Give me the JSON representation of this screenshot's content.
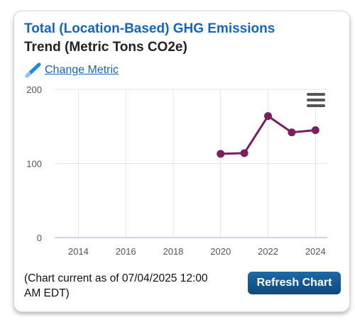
{
  "card": {
    "title_line1": "Total (Location-Based) GHG Emissions",
    "title_line2": "Trend (Metric Tons CO2e)",
    "change_metric_label": "Change Metric",
    "footnote": "(Chart current as of 07/04/2025 12:00 AM EDT)",
    "refresh_label": "Refresh Chart"
  },
  "colors": {
    "title_blue": "#1565c0",
    "series": "#7b1f5e",
    "button": "#0b4a80"
  },
  "icons": {
    "change_metric": "pencil-icon",
    "menu": "hamburger-menu-icon"
  },
  "chart_data": {
    "type": "line",
    "title": "",
    "xlabel": "",
    "ylabel": "",
    "xlim": [
      2013,
      2024.5
    ],
    "ylim": [
      0,
      200
    ],
    "x_ticks": [
      2014,
      2016,
      2018,
      2020,
      2022,
      2024
    ],
    "y_ticks": [
      0,
      100,
      200
    ],
    "grid": "vertical and horizontal",
    "series": [
      {
        "x": [
          2020,
          2021,
          2022,
          2023,
          2024
        ],
        "values": [
          113,
          114,
          164,
          142,
          145
        ]
      }
    ]
  }
}
